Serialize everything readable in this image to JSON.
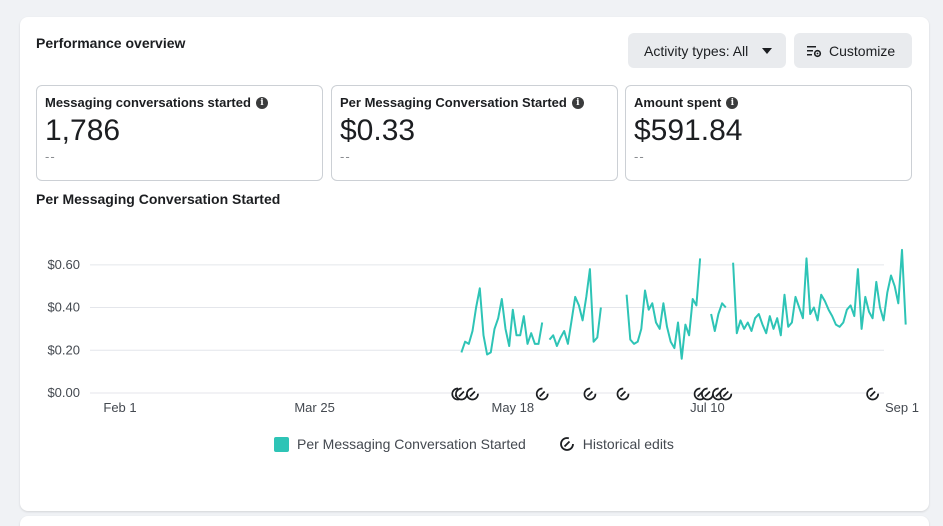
{
  "header": {
    "title": "Performance overview",
    "activity_label": "Activity types: All",
    "customize_label": "Customize"
  },
  "metrics": [
    {
      "label": "Messaging conversations started",
      "value": "1,786",
      "compare": "--"
    },
    {
      "label": "Per Messaging Conversation Started",
      "value": "$0.33",
      "compare": "--"
    },
    {
      "label": "Amount spent",
      "value": "$591.84",
      "compare": "--"
    }
  ],
  "chart_title": "Per Messaging Conversation Started",
  "legend": {
    "series_label": "Per Messaging Conversation Started",
    "edits_label": "Historical edits"
  },
  "colors": {
    "series": "#2ec4b6",
    "grid": "#e4e6eb",
    "text": "#444950"
  },
  "chart_data": {
    "type": "line",
    "ylim": [
      0,
      0.66
    ],
    "y_ticks": [
      "$0.00",
      "$0.20",
      "$0.40",
      "$0.60"
    ],
    "y_tick_values": [
      0,
      0.2,
      0.4,
      0.6
    ],
    "x_ticks": [
      "Feb 1",
      "Mar 25",
      "May 18",
      "Jul 10",
      "Sep 1"
    ],
    "x_tick_days": [
      0,
      53,
      107,
      160,
      213
    ],
    "x_domain_days": [
      0,
      213
    ],
    "series": [
      {
        "name": "Per Messaging Conversation Started",
        "segments": [
          [
            [
              93,
              0.19
            ],
            [
              94,
              0.24
            ],
            [
              95,
              0.23
            ],
            [
              96,
              0.29
            ],
            [
              97,
              0.4
            ],
            [
              98,
              0.49
            ],
            [
              99,
              0.27
            ],
            [
              100,
              0.18
            ],
            [
              101,
              0.19
            ],
            [
              102,
              0.3
            ],
            [
              103,
              0.35
            ],
            [
              104,
              0.44
            ],
            [
              105,
              0.3
            ],
            [
              106,
              0.22
            ],
            [
              107,
              0.39
            ],
            [
              108,
              0.27
            ],
            [
              109,
              0.27
            ],
            [
              110,
              0.36
            ],
            [
              111,
              0.23
            ],
            [
              112,
              0.28
            ],
            [
              113,
              0.23
            ],
            [
              114,
              0.23
            ],
            [
              115,
              0.33
            ]
          ],
          [
            [
              117,
              0.25
            ],
            [
              118,
              0.27
            ],
            [
              119,
              0.22
            ],
            [
              120,
              0.26
            ],
            [
              121,
              0.29
            ],
            [
              122,
              0.23
            ],
            [
              123,
              0.34
            ],
            [
              124,
              0.45
            ],
            [
              125,
              0.41
            ],
            [
              126,
              0.34
            ],
            [
              127,
              0.45
            ],
            [
              128,
              0.58
            ],
            [
              129,
              0.24
            ],
            [
              130,
              0.26
            ],
            [
              131,
              0.4
            ]
          ],
          [
            [
              138,
              0.46
            ],
            [
              139,
              0.25
            ],
            [
              140,
              0.23
            ],
            [
              141,
              0.24
            ],
            [
              142,
              0.3
            ],
            [
              143,
              0.48
            ],
            [
              144,
              0.39
            ],
            [
              145,
              0.42
            ],
            [
              146,
              0.33
            ],
            [
              147,
              0.3
            ],
            [
              148,
              0.42
            ],
            [
              149,
              0.31
            ],
            [
              150,
              0.24
            ],
            [
              151,
              0.21
            ],
            [
              152,
              0.33
            ],
            [
              153,
              0.16
            ],
            [
              154,
              0.32
            ],
            [
              155,
              0.27
            ],
            [
              156,
              0.44
            ],
            [
              157,
              0.41
            ],
            [
              158,
              0.63
            ]
          ],
          [
            [
              161,
              0.37
            ],
            [
              162,
              0.29
            ],
            [
              163,
              0.37
            ],
            [
              164,
              0.42
            ],
            [
              165,
              0.4
            ]
          ],
          [
            [
              167,
              0.61
            ],
            [
              168,
              0.28
            ],
            [
              169,
              0.34
            ],
            [
              170,
              0.3
            ],
            [
              171,
              0.33
            ],
            [
              172,
              0.29
            ],
            [
              173,
              0.35
            ],
            [
              174,
              0.37
            ],
            [
              175,
              0.32
            ],
            [
              176,
              0.28
            ],
            [
              177,
              0.36
            ],
            [
              178,
              0.3
            ],
            [
              179,
              0.35
            ],
            [
              180,
              0.27
            ],
            [
              181,
              0.46
            ],
            [
              182,
              0.31
            ],
            [
              183,
              0.33
            ],
            [
              184,
              0.45
            ],
            [
              185,
              0.4
            ],
            [
              186,
              0.35
            ],
            [
              187,
              0.63
            ],
            [
              188,
              0.37
            ],
            [
              189,
              0.4
            ],
            [
              190,
              0.34
            ],
            [
              191,
              0.46
            ],
            [
              192,
              0.43
            ],
            [
              193,
              0.39
            ],
            [
              194,
              0.36
            ],
            [
              195,
              0.32
            ],
            [
              196,
              0.31
            ],
            [
              197,
              0.33
            ],
            [
              198,
              0.39
            ],
            [
              199,
              0.41
            ],
            [
              200,
              0.36
            ],
            [
              201,
              0.58
            ],
            [
              202,
              0.3
            ],
            [
              203,
              0.45
            ],
            [
              204,
              0.38
            ],
            [
              205,
              0.35
            ],
            [
              206,
              0.52
            ],
            [
              207,
              0.4
            ],
            [
              208,
              0.34
            ],
            [
              209,
              0.47
            ],
            [
              210,
              0.55
            ],
            [
              211,
              0.5
            ],
            [
              212,
              0.42
            ],
            [
              213,
              0.67
            ],
            [
              214,
              0.32
            ]
          ]
        ]
      }
    ],
    "historical_edit_days": [
      92,
      93,
      96,
      115,
      128,
      137,
      158,
      160,
      163,
      165,
      205
    ]
  }
}
